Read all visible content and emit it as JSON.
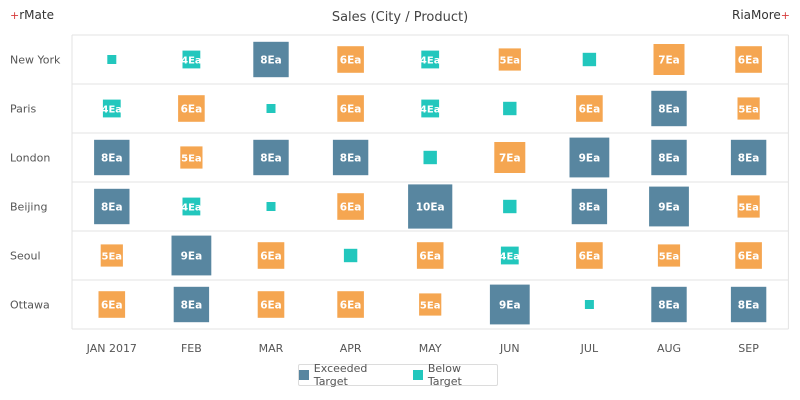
{
  "branding": {
    "left": "rMate",
    "right": "RiaMore",
    "mark": "+"
  },
  "colors": {
    "exceeded": "#5886a0",
    "below": "#22c7bd",
    "mid": "#f5a651",
    "grid": "#e3e3e3",
    "tick_text": "#555555",
    "cell_text": "#ffffff"
  },
  "chart_data": {
    "type": "heatmap",
    "title": "Sales (City / Product)",
    "x_categories": [
      "JAN 2017",
      "FEB",
      "MAR",
      "APR",
      "MAY",
      "JUN",
      "JUL",
      "AUG",
      "SEP"
    ],
    "y_categories": [
      "New York",
      "Paris",
      "London",
      "Beijing",
      "Seoul",
      "Ottawa"
    ],
    "value_unit": "Ea",
    "values": [
      [
        2,
        4,
        8,
        6,
        4,
        5,
        3,
        7,
        6
      ],
      [
        4,
        6,
        2,
        6,
        4,
        3,
        6,
        8,
        5
      ],
      [
        8,
        5,
        8,
        8,
        3,
        7,
        9,
        8,
        8
      ],
      [
        8,
        4,
        2,
        6,
        10,
        3,
        8,
        9,
        5
      ],
      [
        5,
        9,
        6,
        3,
        6,
        4,
        6,
        5,
        6
      ],
      [
        6,
        8,
        6,
        6,
        5,
        9,
        2,
        8,
        8
      ]
    ],
    "legend": [
      {
        "name": "Exceeded Target",
        "color": "#5886a0"
      },
      {
        "name": "Below Target",
        "color": "#22c7bd"
      }
    ],
    "legend_position": "bottom-center",
    "grid": true
  }
}
